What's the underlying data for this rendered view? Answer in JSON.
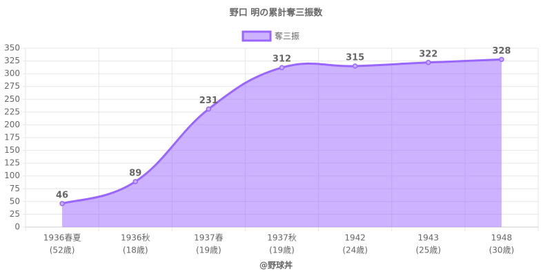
{
  "chart_data": {
    "type": "line",
    "title": "野口 明の累計奪三振数",
    "categories": [
      [
        "1936春夏",
        "(52歳)"
      ],
      [
        "1936秋",
        "(18歳)"
      ],
      [
        "1937春",
        "(19歳)"
      ],
      [
        "1937秋",
        "(19歳)"
      ],
      [
        "1942",
        "(24歳)"
      ],
      [
        "1943",
        "(25歳)"
      ],
      [
        "1948",
        "(30歳)"
      ]
    ],
    "series": [
      {
        "name": "奪三振",
        "color": "#9966ff",
        "values": [
          46,
          89,
          231,
          312,
          315,
          322,
          328
        ]
      }
    ],
    "ylim": [
      0,
      350
    ],
    "yticks": [
      0,
      25,
      50,
      75,
      100,
      125,
      150,
      175,
      200,
      225,
      250,
      275,
      300,
      325,
      350
    ],
    "grid": true,
    "legend": "top",
    "xlabel": "@野球丼"
  }
}
